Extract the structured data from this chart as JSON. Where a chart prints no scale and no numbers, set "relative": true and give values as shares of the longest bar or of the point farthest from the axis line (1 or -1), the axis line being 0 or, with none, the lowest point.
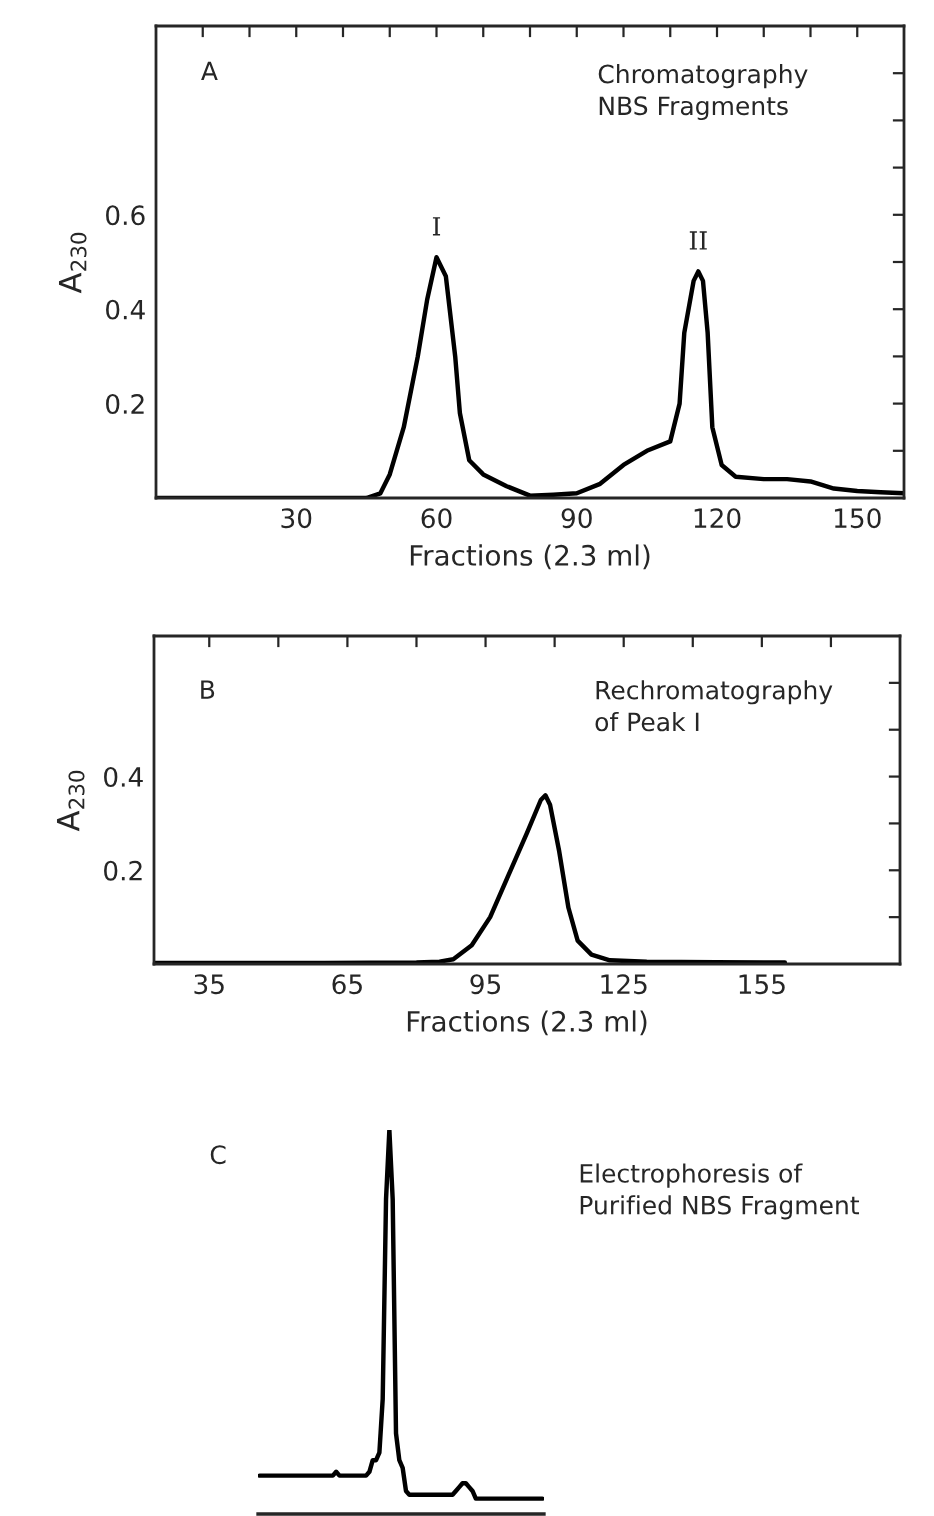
{
  "chart_data": [
    {
      "type": "line",
      "xlabel": "Fractions (2.3 ml)",
      "ylabel": "A$_{230}$",
      "annotations": [
        "A",
        "Chromatography\nNBS Fragments",
        {
          "text": "I",
          "x": 60,
          "y": 0.51
        },
        {
          "text": "II",
          "x": 116,
          "y": 0.48
        }
      ],
      "series": [
        {
          "color": "#000000",
          "x": [
            0,
            10,
            20,
            30,
            40,
            45,
            48,
            50,
            53,
            56,
            58,
            60,
            62,
            64,
            65,
            67,
            70,
            75,
            80,
            85,
            90,
            95,
            100,
            105,
            110,
            112,
            113,
            115,
            116,
            117,
            118,
            119,
            121,
            124,
            130,
            135,
            140,
            145,
            150,
            155,
            160
          ],
          "values": [
            0.0,
            0.0,
            0.0,
            0.0,
            0.0,
            0.0,
            0.01,
            0.05,
            0.15,
            0.3,
            0.42,
            0.51,
            0.47,
            0.3,
            0.18,
            0.08,
            0.05,
            0.025,
            0.005,
            0.007,
            0.01,
            0.03,
            0.07,
            0.1,
            0.12,
            0.2,
            0.35,
            0.46,
            0.48,
            0.46,
            0.35,
            0.15,
            0.07,
            0.045,
            0.04,
            0.04,
            0.035,
            0.02,
            0.015,
            0.012,
            0.01
          ]
        }
      ],
      "xlim": [
        0,
        160
      ],
      "ylim": [
        0,
        1.0
      ],
      "xticks": [
        {
          "value": 10,
          "label": null
        },
        {
          "value": 20,
          "label": null
        },
        30,
        {
          "value": 40,
          "label": null
        },
        {
          "value": 50,
          "label": null
        },
        60,
        {
          "value": 70,
          "label": null
        },
        {
          "value": 80,
          "label": null
        },
        90,
        {
          "value": 100,
          "label": null
        },
        {
          "value": 110,
          "label": null
        },
        120,
        {
          "value": 130,
          "label": null
        },
        {
          "value": 140,
          "label": null
        },
        150
      ],
      "yticks": [
        {
          "value": 0.1,
          "label": null
        },
        0.2,
        {
          "value": 0.3,
          "label": null
        },
        0.4,
        {
          "value": 0.5,
          "label": null
        },
        0.6,
        {
          "value": 0.7,
          "label": null
        },
        {
          "value": 0.8,
          "label": null
        },
        {
          "value": 0.9,
          "label": null
        }
      ],
      "grid": false,
      "legend": false
    },
    {
      "type": "line",
      "xlabel": "Fractions (2.3 ml)",
      "ylabel": "A$_{230}$",
      "annotations": [
        "B",
        "Rechromatography\nof Peak I"
      ],
      "series": [
        {
          "color": "#000000",
          "x": [
            23,
            40,
            60,
            80,
            85,
            88,
            92,
            96,
            100,
            104,
            107,
            108,
            109,
            111,
            113,
            115,
            118,
            122,
            130,
            145,
            160
          ],
          "values": [
            0.002,
            0.002,
            0.002,
            0.003,
            0.005,
            0.01,
            0.04,
            0.1,
            0.19,
            0.28,
            0.35,
            0.36,
            0.34,
            0.24,
            0.12,
            0.05,
            0.02,
            0.008,
            0.005,
            0.004,
            0.003
          ]
        }
      ],
      "xlim": [
        23,
        185
      ],
      "ylim": [
        0,
        0.7
      ],
      "xticks": [
        35,
        {
          "value": 50,
          "label": null
        },
        65,
        {
          "value": 80,
          "label": null
        },
        95,
        {
          "value": 110,
          "label": null
        },
        125,
        {
          "value": 140,
          "label": null
        },
        155,
        {
          "value": 170,
          "label": null
        }
      ],
      "yticks": [
        {
          "value": 0.1,
          "label": null
        },
        0.2,
        {
          "value": 0.3,
          "label": null
        },
        0.4,
        {
          "value": 0.5,
          "label": null
        },
        {
          "value": 0.6,
          "label": null
        }
      ],
      "grid": false,
      "legend": false
    },
    {
      "type": "line",
      "relative": true,
      "annotations": [
        "C",
        "Electrophoresis of\nPurified NBS Fragment"
      ],
      "categories": [
        null,
        null,
        null,
        null,
        null,
        null,
        null,
        null,
        null,
        null,
        null,
        null,
        null,
        null,
        null,
        null,
        null,
        null,
        null,
        null,
        null,
        null,
        null,
        null,
        null,
        null,
        null,
        null,
        null,
        null,
        null,
        null,
        null,
        null,
        null,
        null,
        null,
        null,
        null,
        null,
        null,
        null,
        null,
        null,
        null,
        null,
        null,
        null,
        null,
        null,
        null,
        null,
        null,
        null,
        null,
        null,
        null,
        null,
        null,
        null,
        null,
        null,
        null,
        null,
        null,
        null,
        null,
        null,
        null,
        null,
        null,
        null,
        null,
        null,
        null,
        null,
        null,
        null,
        null,
        null,
        null,
        null,
        null,
        null,
        null,
        null
      ],
      "series": [
        {
          "color": "#000000",
          "values": [
            0.1,
            0.1,
            0.1,
            0.1,
            0.1,
            0.1,
            0.1,
            0.1,
            0.1,
            0.1,
            0.1,
            0.1,
            0.1,
            0.1,
            0.1,
            0.1,
            0.1,
            0.1,
            0.1,
            0.1,
            0.1,
            0.1,
            0.1,
            0.11,
            0.1,
            0.1,
            0.1,
            0.1,
            0.1,
            0.1,
            0.1,
            0.1,
            0.1,
            0.11,
            0.14,
            0.14,
            0.16,
            0.3,
            0.82,
            1.0,
            0.82,
            0.21,
            0.14,
            0.12,
            0.06,
            0.05,
            0.05,
            0.05,
            0.05,
            0.05,
            0.05,
            0.05,
            0.05,
            0.05,
            0.05,
            0.05,
            0.05,
            0.05,
            0.05,
            0.06,
            0.07,
            0.08,
            0.08,
            0.07,
            0.06,
            0.04,
            0.04,
            0.04,
            0.04,
            0.04,
            0.04,
            0.04,
            0.04,
            0.04,
            0.04,
            0.04,
            0.04,
            0.04,
            0.04,
            0.04,
            0.04,
            0.04,
            0.04,
            0.04,
            0.04,
            0.04
          ]
        }
      ],
      "grid": false,
      "legend": false
    }
  ]
}
